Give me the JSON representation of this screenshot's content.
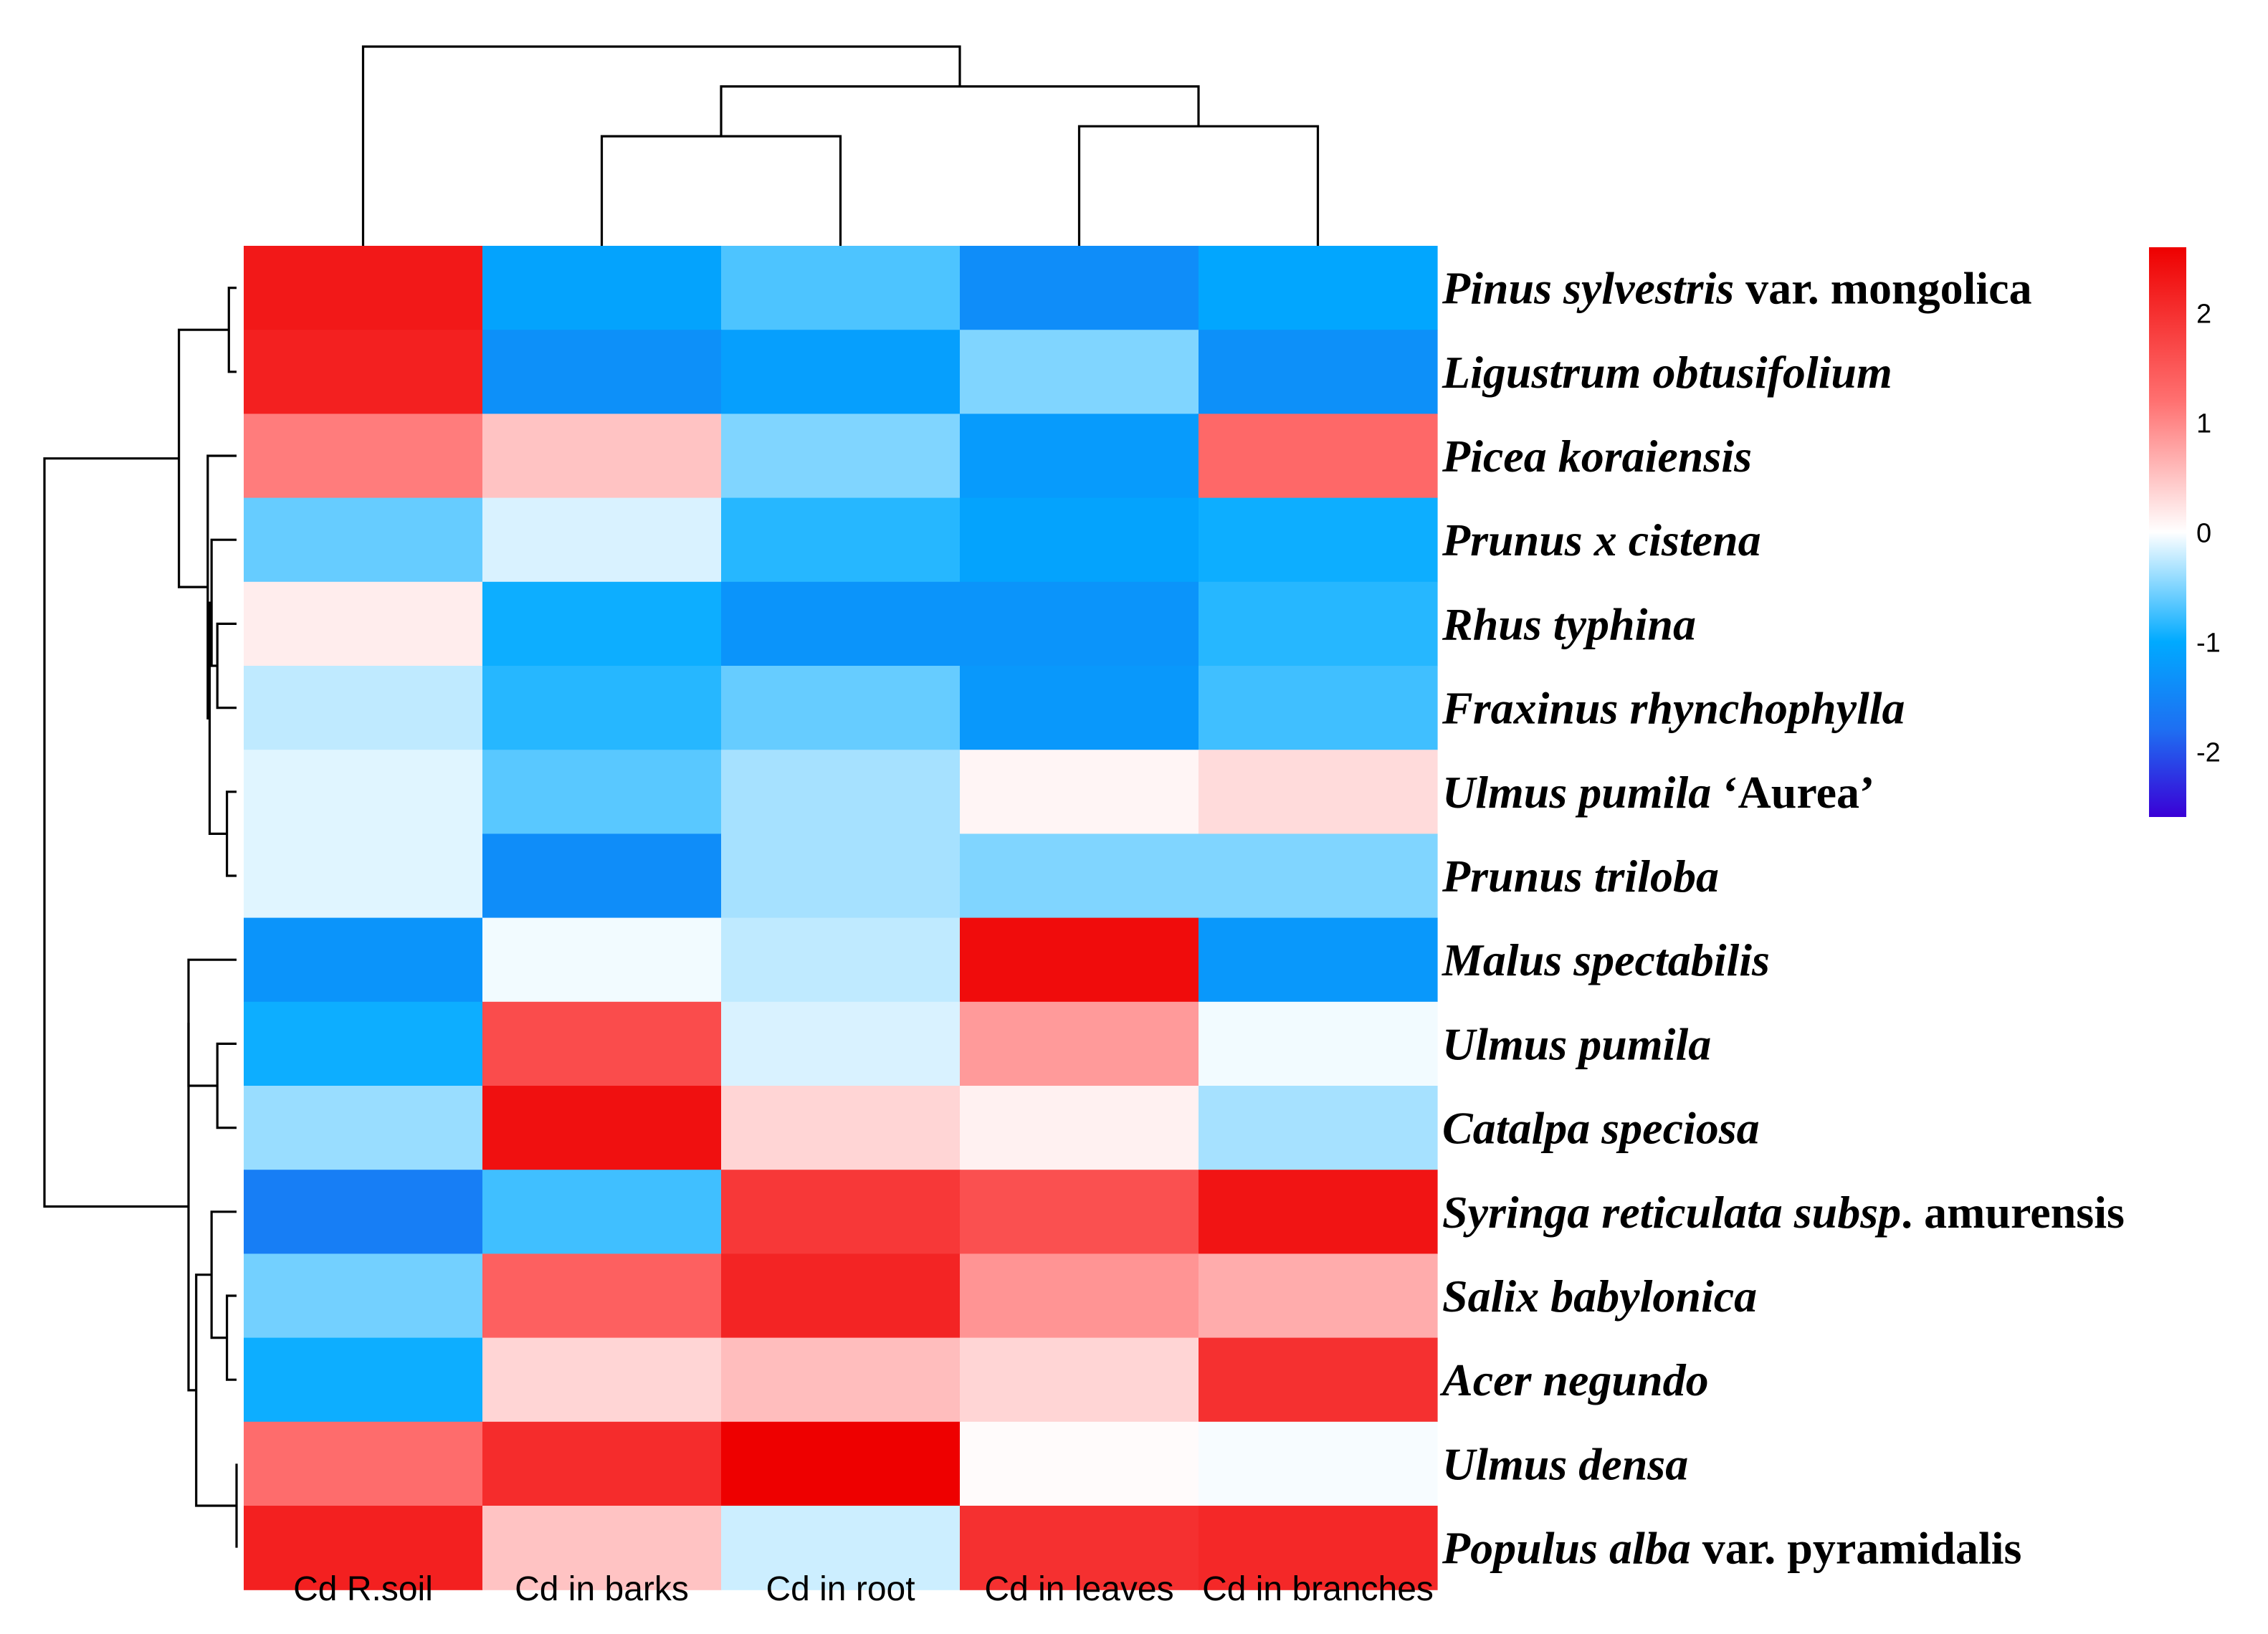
{
  "chart_data": {
    "type": "heatmap",
    "title": "",
    "columns": [
      "Cd R.soil",
      "Cd in barks",
      "Cd in root",
      "Cd in leaves",
      "Cd in branches"
    ],
    "rows": [
      {
        "parts": [
          {
            "text": "Pinus sylvestris",
            "italic": true
          },
          {
            "text": " var. mongolica",
            "italic": false
          }
        ],
        "values": [
          2.3,
          -1.1,
          -0.7,
          -1.4,
          -1.05
        ]
      },
      {
        "parts": [
          {
            "text": "Ligustrum obtusifolium",
            "italic": true
          }
        ],
        "values": [
          2.2,
          -1.35,
          -1.15,
          -0.5,
          -1.35
        ]
      },
      {
        "parts": [
          {
            "text": "Picea koraiensis",
            "italic": true
          }
        ],
        "values": [
          1.1,
          0.5,
          -0.5,
          -1.2,
          1.3
        ]
      },
      {
        "parts": [
          {
            "text": "Prunus x cistena",
            "italic": true
          }
        ],
        "values": [
          -0.6,
          -0.15,
          -0.85,
          -1.1,
          -0.95
        ]
      },
      {
        "parts": [
          {
            "text": "Rhus typhina",
            "italic": true
          }
        ],
        "values": [
          0.15,
          -0.95,
          -1.3,
          -1.3,
          -0.85
        ]
      },
      {
        "parts": [
          {
            "text": "Fraxinus rhynchophylla",
            "italic": true
          }
        ],
        "values": [
          -0.25,
          -0.85,
          -0.6,
          -1.25,
          -0.75
        ]
      },
      {
        "parts": [
          {
            "text": "Ulmus pumila",
            "italic": true
          },
          {
            "text": " ‘Aurea’",
            "italic": false
          }
        ],
        "values": [
          -0.12,
          -0.65,
          -0.35,
          0.08,
          0.3
        ]
      },
      {
        "parts": [
          {
            "text": "Prunus triloba",
            "italic": true
          }
        ],
        "values": [
          -0.12,
          -1.4,
          -0.35,
          -0.5,
          -0.5
        ]
      },
      {
        "parts": [
          {
            "text": "Malus spectabilis",
            "italic": true
          }
        ],
        "values": [
          -1.3,
          -0.05,
          -0.25,
          2.45,
          -1.25
        ]
      },
      {
        "parts": [
          {
            "text": "Ulmus pumila",
            "italic": true
          }
        ],
        "values": [
          -0.95,
          1.65,
          -0.15,
          0.85,
          -0.05
        ]
      },
      {
        "parts": [
          {
            "text": "Catalpa speciosa",
            "italic": true
          }
        ],
        "values": [
          -0.4,
          2.4,
          0.35,
          0.12,
          -0.35
        ]
      },
      {
        "parts": [
          {
            "text": "Syringa reticulata subsp",
            "italic": true
          },
          {
            "text": ". amurensis",
            "italic": false
          }
        ],
        "values": [
          -1.6,
          -0.75,
          1.9,
          1.6,
          2.35
        ]
      },
      {
        "parts": [
          {
            "text": "Salix babylonica",
            "italic": true
          }
        ],
        "values": [
          -0.55,
          1.4,
          2.15,
          0.9,
          0.7
        ]
      },
      {
        "parts": [
          {
            "text": "Acer negundo",
            "italic": true
          }
        ],
        "values": [
          -0.95,
          0.35,
          0.55,
          0.35,
          2.0
        ]
      },
      {
        "parts": [
          {
            "text": "Ulmus densa",
            "italic": true
          }
        ],
        "values": [
          1.25,
          2.05,
          2.6,
          0.03,
          -0.03
        ]
      },
      {
        "parts": [
          {
            "text": "Populus alba",
            "italic": true
          },
          {
            "text": " var. pyramidalis",
            "italic": false
          }
        ],
        "values": [
          2.2,
          0.5,
          -0.2,
          2.0,
          2.1
        ]
      }
    ],
    "color_scale": {
      "min": -2.6,
      "max": 2.6,
      "stops": [
        {
          "value": -2.6,
          "color": "#3a00d6"
        },
        {
          "value": -1.8,
          "color": "#1e6ff2"
        },
        {
          "value": -1.0,
          "color": "#00aaff"
        },
        {
          "value": 0,
          "color": "#ffffff"
        },
        {
          "value": 1.2,
          "color": "#ff7070"
        },
        {
          "value": 2.6,
          "color": "#ee0000"
        }
      ],
      "ticks": [
        "2",
        "1",
        "0",
        "-1",
        "-2"
      ],
      "tick_values": [
        2,
        1,
        0,
        -1,
        -2
      ]
    },
    "column_dendrogram": [
      {
        "merge": [
          1,
          2
        ],
        "height": 0.55
      },
      {
        "merge": [
          3,
          4
        ],
        "height": 0.6
      },
      {
        "merge": [
          "barks-root",
          "leaves-branches"
        ],
        "height": 0.8
      },
      {
        "merge": [
          0,
          "others"
        ],
        "height": 1.0
      }
    ],
    "row_dendrogram": [
      {
        "merge": [
          0,
          1
        ],
        "height": 0.04
      },
      {
        "merge": [
          6,
          7
        ],
        "height": 0.05
      },
      {
        "merge": [
          4,
          5
        ],
        "height": 0.1
      },
      {
        "merge": [
          3,
          "4-5"
        ],
        "height": 0.13
      },
      {
        "merge": [
          "3-5",
          "6-7"
        ],
        "height": 0.14
      },
      {
        "merge": [
          2,
          "3-7"
        ],
        "height": 0.15
      },
      {
        "merge": [
          "0-1",
          "2-7"
        ],
        "height": 0.3
      },
      {
        "merge": [
          9,
          10
        ],
        "height": 0.1
      },
      {
        "merge": [
          8,
          "9-10"
        ],
        "height": 0.25
      },
      {
        "merge": [
          12,
          13
        ],
        "height": 0.05
      },
      {
        "merge": [
          11,
          "12-13"
        ],
        "height": 0.13
      },
      {
        "merge": [
          14,
          15
        ],
        "height": 0.0
      },
      {
        "merge": [
          "11-13",
          "14-15"
        ],
        "height": 0.21
      },
      {
        "merge": [
          "8-10",
          "11-15"
        ],
        "height": 0.25
      },
      {
        "merge": [
          "0-7",
          "8-15"
        ],
        "height": 1.0
      }
    ]
  }
}
